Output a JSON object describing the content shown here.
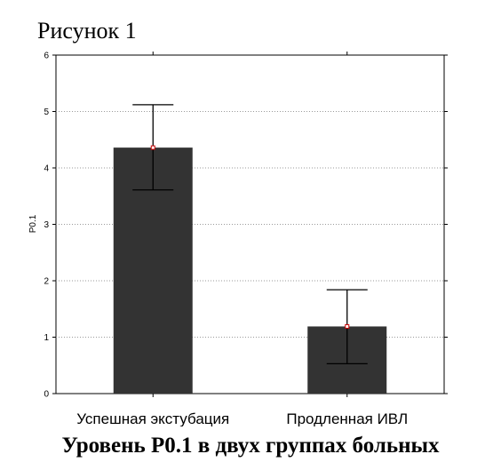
{
  "figure_label": "Рисунок  1",
  "caption": "Уровень P0.1 в двух группах больных",
  "chart_data": {
    "type": "bar",
    "categories": [
      "Успешная экстубация",
      "Продленная ИВЛ"
    ],
    "values": [
      4.36,
      1.19
    ],
    "error_upper": [
      5.12,
      1.84
    ],
    "error_lower": [
      3.61,
      0.53
    ],
    "ylabel": "P0.1",
    "xlabel": "",
    "ylim": [
      0,
      6
    ],
    "yticks": [
      0,
      1,
      2,
      3,
      4,
      5,
      6
    ],
    "grid": true,
    "bar_color": "#333333",
    "marker_color": "#cc0000"
  }
}
